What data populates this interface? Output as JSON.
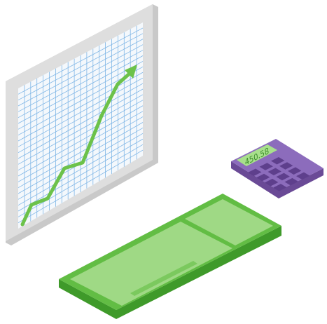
{
  "calculator": {
    "display": "450.58"
  }
}
